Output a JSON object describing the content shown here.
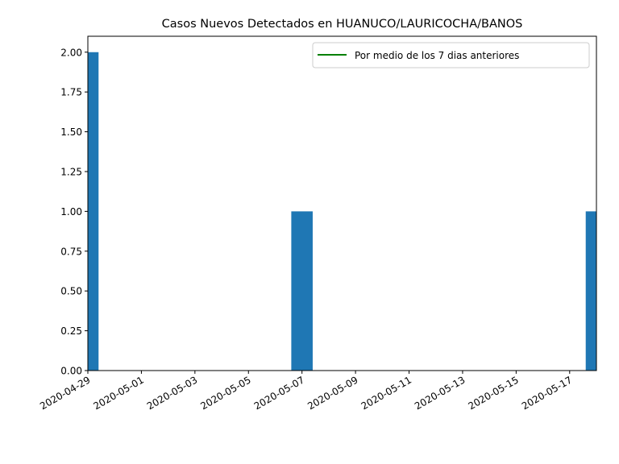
{
  "chart_data": {
    "type": "bar",
    "title": "Casos Nuevos Detectados en HUANUCO/LAURICOCHA/BANOS",
    "x": [
      "2020-04-29",
      "2020-04-30",
      "2020-05-01",
      "2020-05-02",
      "2020-05-03",
      "2020-05-04",
      "2020-05-05",
      "2020-05-06",
      "2020-05-07",
      "2020-05-08",
      "2020-05-09",
      "2020-05-10",
      "2020-05-11",
      "2020-05-12",
      "2020-05-13",
      "2020-05-14",
      "2020-05-15",
      "2020-05-16",
      "2020-05-17",
      "2020-05-18"
    ],
    "values": [
      2,
      0,
      0,
      0,
      0,
      0,
      0,
      0,
      1,
      0,
      0,
      0,
      0,
      0,
      0,
      0,
      0,
      0,
      0,
      1
    ],
    "color": "#1f77b4",
    "legend": [
      {
        "name": "Por medio de los 7 dias anteriores",
        "color": "green"
      }
    ],
    "legend_position": "upper right",
    "xlim": [
      "2020-04-29",
      "2020-05-18"
    ],
    "xticks": [
      "2020-04-29",
      "2020-05-01",
      "2020-05-03",
      "2020-05-05",
      "2020-05-07",
      "2020-05-09",
      "2020-05-11",
      "2020-05-13",
      "2020-05-15",
      "2020-05-17"
    ],
    "ylim": [
      0,
      2.1
    ],
    "yticks": [
      {
        "value": 0,
        "label": "0.00"
      },
      {
        "value": 0.25,
        "label": "0.25"
      },
      {
        "value": 0.5,
        "label": "0.50"
      },
      {
        "value": 0.75,
        "label": "0.75"
      },
      {
        "value": 1,
        "label": "1.00"
      },
      {
        "value": 1.25,
        "label": "1.25"
      },
      {
        "value": 1.5,
        "label": "1.50"
      },
      {
        "value": 1.75,
        "label": "1.75"
      },
      {
        "value": 2,
        "label": "2.00"
      }
    ],
    "grid": false
  }
}
